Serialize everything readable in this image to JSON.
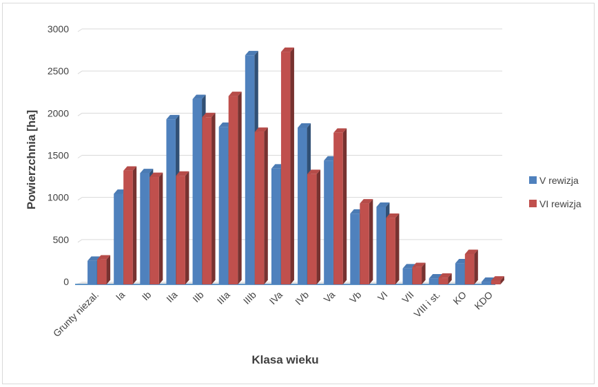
{
  "chart_data": {
    "type": "bar",
    "title": "",
    "xlabel": "Klasa wieku",
    "ylabel": "Powierzchnia [ha]",
    "ylim": [
      0,
      3000
    ],
    "yticks": [
      "0",
      "500",
      "1000",
      "1500",
      "2000",
      "2500",
      "3000"
    ],
    "ytick_values": [
      0,
      500,
      1000,
      1500,
      2000,
      2500,
      3000
    ],
    "grid": true,
    "legend_position": "right",
    "categories": [
      "Grunty niezal.",
      "Ia",
      "Ib",
      "IIa",
      "IIb",
      "IIIa",
      "IIIb",
      "IVa",
      "IVb",
      "Va",
      "Vb",
      "VI",
      "VII",
      "VIII i st.",
      "KO",
      "KDO"
    ],
    "series": [
      {
        "name": "V rewizja",
        "color": "#4f81bd",
        "values": [
          280,
          1075,
          1320,
          1960,
          2200,
          1870,
          2720,
          1375,
          1860,
          1470,
          840,
          920,
          190,
          70,
          250,
          30
        ]
      },
      {
        "name": "VI rewizja",
        "color": "#c0504d",
        "values": [
          295,
          1350,
          1275,
          1290,
          1985,
          2235,
          1810,
          2760,
          1310,
          1800,
          960,
          790,
          205,
          80,
          360,
          45
        ]
      }
    ]
  }
}
